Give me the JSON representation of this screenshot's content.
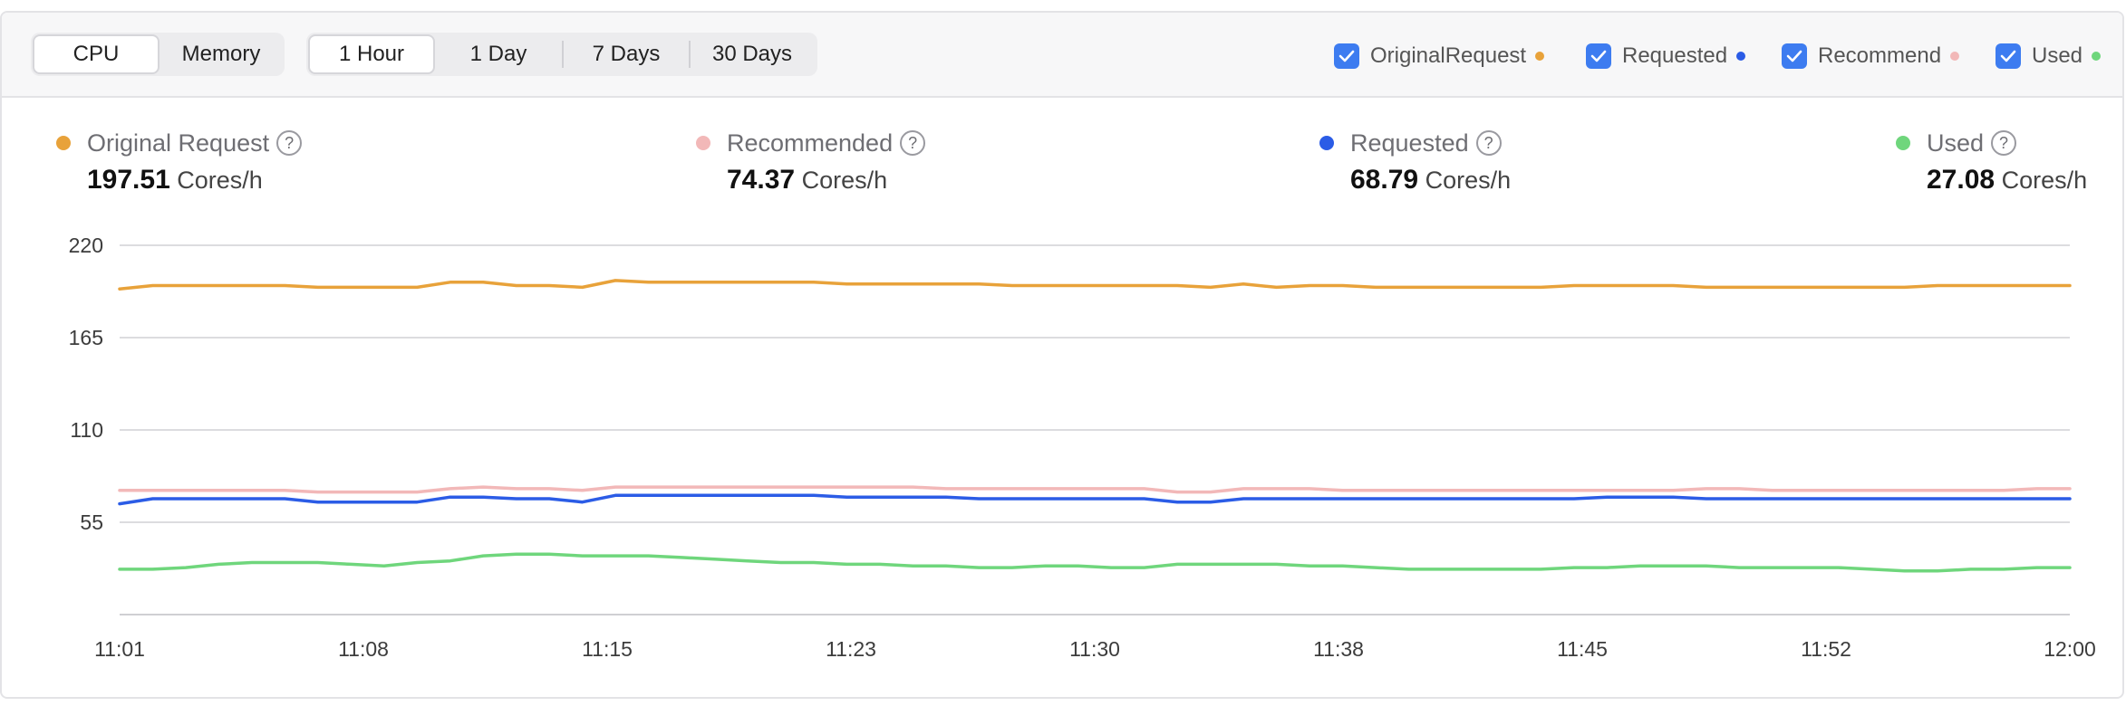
{
  "tabs_resource": [
    {
      "label": "CPU",
      "active": true
    },
    {
      "label": "Memory",
      "active": false
    }
  ],
  "tabs_range": [
    {
      "label": "1 Hour",
      "active": true
    },
    {
      "label": "1 Day",
      "active": false
    },
    {
      "label": "7 Days",
      "active": false
    },
    {
      "label": "30 Days",
      "active": false
    }
  ],
  "legend": [
    {
      "label": "OriginalRequest",
      "checked": true,
      "color": "#e8a23a"
    },
    {
      "label": "Requested",
      "checked": true,
      "color": "#2b5ce6"
    },
    {
      "label": "Recommend",
      "checked": true,
      "color": "#f2b8b8"
    },
    {
      "label": "Used",
      "checked": true,
      "color": "#6fd67c"
    }
  ],
  "metrics": [
    {
      "name": "Original Request",
      "value": "197.51",
      "unit": "Cores/h",
      "color": "#e8a23a"
    },
    {
      "name": "Recommended",
      "value": "74.37",
      "unit": "Cores/h",
      "color": "#f2b8b8"
    },
    {
      "name": "Requested",
      "value": "68.79",
      "unit": "Cores/h",
      "color": "#2b5ce6"
    },
    {
      "name": "Used",
      "value": "27.08",
      "unit": "Cores/h",
      "color": "#6fd67c"
    }
  ],
  "chart_data": {
    "type": "line",
    "xlabel": "",
    "ylabel": "",
    "ylim": [
      0,
      220
    ],
    "yticks": [
      55,
      110,
      165,
      220
    ],
    "xticks": [
      "11:01",
      "11:08",
      "11:15",
      "11:23",
      "11:30",
      "11:38",
      "11:45",
      "11:52",
      "12:00"
    ],
    "grid": true,
    "x": [
      "11:01",
      "11:02",
      "11:03",
      "11:04",
      "11:05",
      "11:06",
      "11:07",
      "11:08",
      "11:09",
      "11:10",
      "11:11",
      "11:12",
      "11:13",
      "11:14",
      "11:15",
      "11:16",
      "11:17",
      "11:18",
      "11:19",
      "11:20",
      "11:21",
      "11:22",
      "11:23",
      "11:24",
      "11:25",
      "11:26",
      "11:27",
      "11:28",
      "11:29",
      "11:30",
      "11:31",
      "11:32",
      "11:33",
      "11:34",
      "11:35",
      "11:36",
      "11:37",
      "11:38",
      "11:39",
      "11:40",
      "11:41",
      "11:42",
      "11:43",
      "11:44",
      "11:45",
      "11:46",
      "11:47",
      "11:48",
      "11:49",
      "11:50",
      "11:51",
      "11:52",
      "11:53",
      "11:54",
      "11:55",
      "11:56",
      "11:57",
      "11:58",
      "11:59",
      "12:00"
    ],
    "series": [
      {
        "name": "OriginalRequest",
        "color": "#e8a23a",
        "values": [
          194,
          196,
          196,
          196,
          196,
          196,
          195,
          195,
          195,
          195,
          198,
          198,
          196,
          196,
          195,
          199,
          198,
          198,
          198,
          198,
          198,
          198,
          197,
          197,
          197,
          197,
          197,
          196,
          196,
          196,
          196,
          196,
          196,
          195,
          197,
          195,
          196,
          196,
          195,
          195,
          195,
          195,
          195,
          195,
          196,
          196,
          196,
          196,
          195,
          195,
          195,
          195,
          195,
          195,
          195,
          196,
          196,
          196,
          196,
          196
        ]
      },
      {
        "name": "Recommend",
        "color": "#f2b8b8",
        "values": [
          74,
          74,
          74,
          74,
          74,
          74,
          73,
          73,
          73,
          73,
          75,
          76,
          75,
          75,
          74,
          76,
          76,
          76,
          76,
          76,
          76,
          76,
          76,
          76,
          76,
          75,
          75,
          75,
          75,
          75,
          75,
          75,
          73,
          73,
          75,
          75,
          75,
          74,
          74,
          74,
          74,
          74,
          74,
          74,
          74,
          74,
          74,
          74,
          75,
          75,
          74,
          74,
          74,
          74,
          74,
          74,
          74,
          74,
          75,
          75
        ]
      },
      {
        "name": "Requested",
        "color": "#2b5ce6",
        "values": [
          66,
          69,
          69,
          69,
          69,
          69,
          67,
          67,
          67,
          67,
          70,
          70,
          69,
          69,
          67,
          71,
          71,
          71,
          71,
          71,
          71,
          71,
          70,
          70,
          70,
          70,
          69,
          69,
          69,
          69,
          69,
          69,
          67,
          67,
          69,
          69,
          69,
          69,
          69,
          69,
          69,
          69,
          69,
          69,
          69,
          70,
          70,
          70,
          69,
          69,
          69,
          69,
          69,
          69,
          69,
          69,
          69,
          69,
          69,
          69
        ]
      },
      {
        "name": "Used",
        "color": "#6fd67c",
        "values": [
          27,
          27,
          28,
          30,
          31,
          31,
          31,
          30,
          29,
          31,
          32,
          35,
          36,
          36,
          35,
          35,
          35,
          34,
          33,
          32,
          31,
          31,
          30,
          30,
          29,
          29,
          28,
          28,
          29,
          29,
          28,
          28,
          30,
          30,
          30,
          30,
          29,
          29,
          28,
          27,
          27,
          27,
          27,
          27,
          28,
          28,
          29,
          29,
          29,
          28,
          28,
          28,
          28,
          27,
          26,
          26,
          27,
          27,
          28,
          28
        ]
      }
    ]
  }
}
